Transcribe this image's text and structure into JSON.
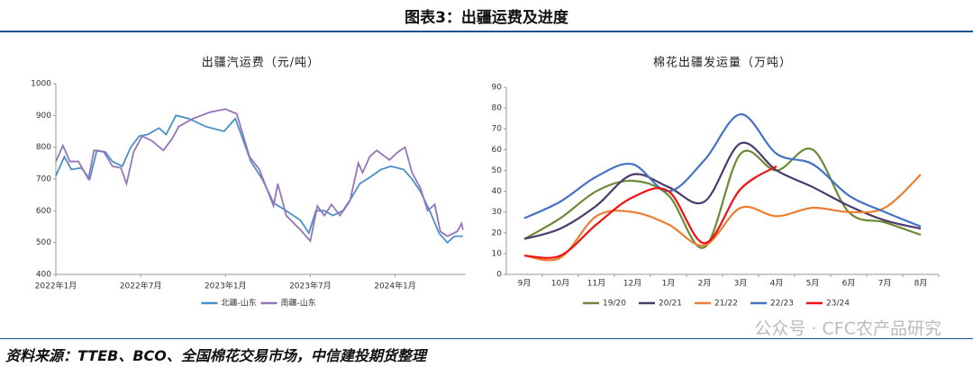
{
  "header": {
    "title": "图表3：出疆运费及进度"
  },
  "chart_data": [
    {
      "type": "line",
      "title": "出疆汽运费（元/吨）",
      "xlim": [
        0,
        29
      ],
      "xticks": [
        {
          "value": 0,
          "label": "2022年1月"
        },
        {
          "value": 6,
          "label": "2022年7月"
        },
        {
          "value": 12,
          "label": "2023年1月"
        },
        {
          "value": 18,
          "label": "2023年7月"
        },
        {
          "value": 24,
          "label": "2024年1月"
        }
      ],
      "ylim": [
        400,
        1000
      ],
      "yticks": [
        400,
        500,
        600,
        700,
        800,
        900,
        1000
      ],
      "grid": false,
      "smooth": false,
      "legend": "bottom",
      "series": [
        {
          "name": "北疆-山东",
          "color": "#4a90c8",
          "x": [
            0,
            0.6,
            1.1,
            1.8,
            2.4,
            2.9,
            3.5,
            4.0,
            4.7,
            5.3,
            5.9,
            6.5,
            7.3,
            7.8,
            8.5,
            9.4,
            10.6,
            11.9,
            12.7,
            13.8,
            14.6,
            15.4,
            16.3,
            17.3,
            17.9,
            18.4,
            19.0,
            19.6,
            20.3,
            20.9,
            21.5,
            22.2,
            23.0,
            23.7,
            24.6,
            25.2,
            25.8,
            26.5,
            27.1,
            27.7,
            28.2,
            28.8
          ],
          "values": [
            710,
            770,
            730,
            735,
            700,
            790,
            785,
            755,
            740,
            800,
            835,
            840,
            860,
            840,
            900,
            890,
            865,
            850,
            890,
            755,
            700,
            625,
            600,
            570,
            530,
            600,
            600,
            585,
            600,
            640,
            685,
            705,
            730,
            740,
            730,
            700,
            660,
            595,
            530,
            500,
            520,
            520
          ]
        },
        {
          "name": "南疆-山东",
          "color": "#9575b8",
          "x": [
            0,
            0.5,
            1.0,
            1.6,
            2.3,
            2.7,
            3.4,
            4.0,
            4.6,
            5.0,
            5.5,
            6.1,
            6.8,
            7.6,
            8.2,
            8.7,
            9.7,
            10.9,
            12.0,
            12.8,
            13.7,
            14.4,
            15.4,
            15.7,
            16.3,
            17.3,
            18.0,
            18.5,
            19.0,
            19.5,
            20.1,
            20.8,
            21.4,
            21.7,
            22.2,
            22.7,
            23.6,
            24.2,
            24.7,
            25.2,
            25.8,
            26.3,
            26.8,
            27.2,
            27.7,
            28.4,
            28.7,
            28.8
          ],
          "values": [
            755,
            805,
            755,
            755,
            700,
            790,
            785,
            740,
            735,
            685,
            785,
            835,
            820,
            790,
            825,
            865,
            890,
            910,
            920,
            905,
            770,
            730,
            615,
            685,
            585,
            540,
            505,
            615,
            585,
            620,
            585,
            630,
            750,
            720,
            770,
            790,
            760,
            785,
            800,
            720,
            670,
            600,
            620,
            535,
            520,
            535,
            560,
            540
          ]
        }
      ]
    },
    {
      "type": "line",
      "title": "棉花出疆发运量（万吨）",
      "categories": [
        "9月",
        "10月",
        "11月",
        "12月",
        "1月",
        "2月",
        "3月",
        "4月",
        "5月",
        "6月",
        "7月",
        "8月"
      ],
      "ylim": [
        0,
        90
      ],
      "yticks": [
        0,
        10,
        20,
        30,
        40,
        50,
        60,
        70,
        80,
        90
      ],
      "grid": false,
      "smooth": true,
      "legend": "bottom",
      "series": [
        {
          "name": "19/20",
          "color": "#6b8a35",
          "values": [
            17,
            27,
            40,
            45,
            38,
            13,
            58,
            50,
            60,
            30,
            25,
            19
          ]
        },
        {
          "name": "20/21",
          "color": "#4b3a6b",
          "values": [
            17,
            22,
            33,
            48,
            42,
            35,
            63,
            50,
            42,
            33,
            26,
            22
          ]
        },
        {
          "name": "21/22",
          "color": "#ed7d31",
          "values": [
            9,
            8,
            28,
            30,
            24,
            14,
            32,
            28,
            32,
            30,
            32,
            48
          ]
        },
        {
          "name": "22/23",
          "color": "#4472c4",
          "values": [
            27,
            35,
            47,
            53,
            40,
            55,
            77,
            58,
            53,
            38,
            30,
            23
          ]
        },
        {
          "name": "23/24",
          "color": "#ee1111",
          "values": [
            9,
            9,
            24,
            37,
            40,
            15,
            41,
            52,
            null,
            null,
            null,
            null
          ]
        }
      ]
    }
  ],
  "footer": {
    "source": "资料来源：TTEB、BCO、全国棉花交易市场，中信建投期货整理",
    "watermark": "公众号 · CFC农产品研究"
  }
}
